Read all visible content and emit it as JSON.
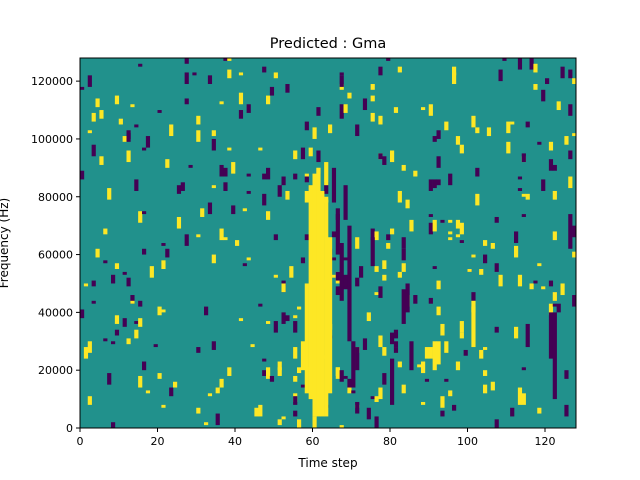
{
  "chart_data": {
    "type": "heatmap",
    "title": "Predicted : Gma",
    "xlabel": "Time step",
    "ylabel": "Frequency (Hz)",
    "xlim": [
      0,
      128
    ],
    "ylim": [
      0,
      128000
    ],
    "x_ticks": [
      0,
      20,
      40,
      60,
      80,
      100,
      120
    ],
    "y_ticks": [
      0,
      20000,
      40000,
      60000,
      80000,
      100000,
      120000
    ],
    "x_tick_labels": [
      "0",
      "20",
      "40",
      "60",
      "80",
      "100",
      "120"
    ],
    "y_tick_labels": [
      "0",
      "20000",
      "40000",
      "60000",
      "80000",
      "100000",
      "120000"
    ],
    "grid": false,
    "colormap": "viridis",
    "levels": {
      "low": -1,
      "mid": 0,
      "high": 1
    },
    "level_colors": {
      "low": "#440154",
      "mid": "#21918c",
      "high": "#fde725"
    },
    "n_time_steps": 128,
    "n_freq_bins": 128,
    "freq_bin_hz": 1000,
    "segments": [
      {
        "x": 60,
        "y0": 4000,
        "y1": 88000,
        "value": 1
      },
      {
        "x": 61,
        "y0": 4000,
        "y1": 90000,
        "value": 1
      },
      {
        "x": 62,
        "y0": 4000,
        "y1": 82000,
        "value": 1
      },
      {
        "x": 63,
        "y0": 4000,
        "y1": 80000,
        "value": 1
      },
      {
        "x": 64,
        "y0": 12000,
        "y1": 66000,
        "value": 1
      },
      {
        "x": 59,
        "y0": 10000,
        "y1": 84000,
        "value": 1
      },
      {
        "x": 58,
        "y0": 12000,
        "y1": 50000,
        "value": 1
      },
      {
        "x": 57,
        "y0": 20000,
        "y1": 30000,
        "value": 1
      },
      {
        "x": 55,
        "y0": 24000,
        "y1": 28000,
        "value": 1
      },
      {
        "x": 63,
        "y0": 84000,
        "y1": 92000,
        "value": 1
      },
      {
        "x": 66,
        "y0": 60000,
        "y1": 74000,
        "value": -1
      },
      {
        "x": 67,
        "y0": 44000,
        "y1": 64000,
        "value": -1
      },
      {
        "x": 69,
        "y0": 30000,
        "y1": 70000,
        "value": -1
      },
      {
        "x": 70,
        "y0": 14000,
        "y1": 30000,
        "value": -1
      },
      {
        "x": 71,
        "y0": 20000,
        "y1": 28000,
        "value": -1
      },
      {
        "x": 65,
        "y0": 78000,
        "y1": 90000,
        "value": -1
      },
      {
        "x": 68,
        "y0": 72000,
        "y1": 84000,
        "value": -1
      },
      {
        "x": 75,
        "y0": 56000,
        "y1": 66000,
        "value": -1
      },
      {
        "x": 80,
        "y0": 8000,
        "y1": 24000,
        "value": -1
      },
      {
        "x": 83,
        "y0": 36000,
        "y1": 48000,
        "value": -1
      },
      {
        "x": 84,
        "y0": 40000,
        "y1": 50000,
        "value": -1
      },
      {
        "x": 85,
        "y0": 20000,
        "y1": 30000,
        "value": -1
      },
      {
        "x": 89,
        "y0": 24000,
        "y1": 28000,
        "value": 1
      },
      {
        "x": 90,
        "y0": 24000,
        "y1": 28000,
        "value": 1
      },
      {
        "x": 91,
        "y0": 20000,
        "y1": 30000,
        "value": 1
      },
      {
        "x": 92,
        "y0": 22000,
        "y1": 30000,
        "value": 1
      },
      {
        "x": 101,
        "y0": 28000,
        "y1": 44000,
        "value": 1
      },
      {
        "x": 113,
        "y0": 8000,
        "y1": 14000,
        "value": 1
      },
      {
        "x": 114,
        "y0": 8000,
        "y1": 12000,
        "value": 1
      },
      {
        "x": 121,
        "y0": 24000,
        "y1": 40000,
        "value": -1
      },
      {
        "x": 122,
        "y0": 10000,
        "y1": 40000,
        "value": -1
      },
      {
        "x": 126,
        "y0": 62000,
        "y1": 74000,
        "value": -1
      },
      {
        "x": 127,
        "y0": 66000,
        "y1": 70000,
        "value": -1
      }
    ]
  }
}
